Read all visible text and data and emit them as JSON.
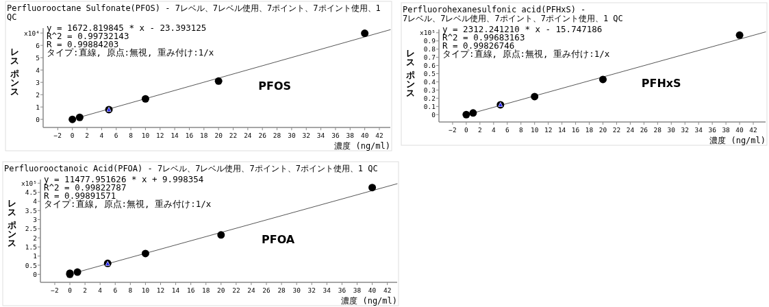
{
  "chart_data": [
    {
      "type": "scatter",
      "title": "Perfluorooctane Sulfonate(PFOS) - 7レベル、7レベル使用、7ポイント、7ポイント使用、1 QC",
      "ylabel": "レスポンス",
      "xlabel": "濃度 (ng/ml)",
      "xlim": [
        -4,
        43.5
      ],
      "ylim": [
        -0.66,
        7.4
      ],
      "xticks": [
        -2,
        0,
        2,
        4,
        6,
        8,
        10,
        12,
        14,
        16,
        18,
        20,
        22,
        24,
        26,
        28,
        30,
        32,
        34,
        36,
        38,
        40,
        42
      ],
      "yticks": [
        0,
        1,
        2,
        3,
        4,
        5,
        6,
        {
          "value": 7,
          "label": "x10⁴"
        }
      ],
      "grid": false,
      "series": [
        {
          "type": "line",
          "color": "#555555",
          "x": [
            1,
            43.5
          ],
          "values": [
            0.17,
            7.27
          ],
          "marker": "none",
          "line_style": "solid"
        },
        {
          "type": "scatter",
          "color": "#000000",
          "x": [
            0,
            1,
            5,
            10,
            20,
            40
          ],
          "values": [
            0,
            0.16,
            0.79,
            1.66,
            3.1,
            6.98
          ],
          "marker": "circle"
        },
        {
          "type": "scatter",
          "color": "#1a1aff",
          "x": [
            5
          ],
          "values": [
            0.79
          ],
          "marker": "triangle"
        }
      ],
      "annotations": [
        "y = 1672.819845 * x  - 23.393125",
        "R^2 = 0.99732143",
        "R = 0.99884203",
        "タイプ:直線, 原点:無視, 重み付け:1/x",
        "PFOS"
      ]
    },
    {
      "type": "scatter",
      "title": "Perfluorohexanesulfonic acid(PFHxS) - 7レベル、7レベル使用、7ポイント、7ポイント使用、1 QC",
      "ylabel": "レスポンス",
      "xlabel": "濃度 (ng/ml)",
      "xlim": [
        -4,
        43.8
      ],
      "ylim": [
        -0.09,
        1.04
      ],
      "xticks": [
        -2,
        0,
        2,
        4,
        6,
        8,
        10,
        12,
        14,
        16,
        18,
        20,
        22,
        24,
        26,
        28,
        30,
        32,
        34,
        36,
        38,
        40,
        42
      ],
      "yticks": [
        0,
        0.1,
        0.2,
        0.3,
        0.4,
        0.5,
        0.6,
        0.7,
        0.8,
        0.9,
        {
          "value": 1,
          "label": "x10⁵"
        }
      ],
      "grid": false,
      "series": [
        {
          "type": "line",
          "color": "#555555",
          "x": [
            1,
            43.8
          ],
          "values": [
            0.02,
            1.01
          ],
          "marker": "none",
          "line_style": "solid"
        },
        {
          "type": "scatter",
          "color": "#000000",
          "x": [
            0,
            1,
            5,
            10,
            20,
            40
          ],
          "values": [
            0,
            0.02,
            0.12,
            0.22,
            0.43,
            0.97
          ],
          "marker": "circle"
        },
        {
          "type": "scatter",
          "color": "#1a1aff",
          "x": [
            5
          ],
          "values": [
            0.12
          ],
          "marker": "triangle"
        }
      ],
      "annotations": [
        "y = 2312.241210 * x  - 15.747186",
        "R^2 = 0.99683163",
        "R = 0.99826746",
        "タイプ:直線, 原点:無視, 重み付け:1/x",
        "PFHxS"
      ]
    },
    {
      "type": "scatter",
      "title": "Perfluorooctanoic Acid(PFOA) - 7レベル、7レベル使用、7ポイント、7ポイント使用、1 QC",
      "ylabel": "レスポンス",
      "xlabel": "濃度 (ng/ml)",
      "xlim": [
        -3.9,
        43.3
      ],
      "ylim": [
        -0.44,
        5.2
      ],
      "xticks": [
        -2,
        0,
        2,
        4,
        6,
        8,
        10,
        12,
        14,
        16,
        18,
        20,
        22,
        24,
        26,
        28,
        30,
        32,
        34,
        36,
        38,
        40,
        42
      ],
      "yticks": [
        0,
        0.5,
        1,
        1.5,
        2,
        2.5,
        3,
        3.5,
        4,
        4.5,
        {
          "value": 5,
          "label": "x10⁵"
        }
      ],
      "grid": false,
      "series": [
        {
          "type": "line",
          "color": "#555555",
          "x": [
            1,
            43.3
          ],
          "values": [
            0.12,
            4.97
          ],
          "marker": "none",
          "line_style": "solid"
        },
        {
          "type": "scatter",
          "color": "#000000",
          "x": [
            0,
            0,
            1,
            5,
            10,
            20,
            40
          ],
          "values": [
            0,
            0.06,
            0.12,
            0.6,
            1.14,
            2.16,
            4.76
          ],
          "marker": "circle"
        },
        {
          "type": "scatter",
          "color": "#1a1aff",
          "x": [
            5
          ],
          "values": [
            0.58
          ],
          "marker": "triangle"
        }
      ],
      "annotations": [
        "y = 11477.951626 * x  + 9.998354",
        "R^2 = 0.99822787",
        "R = 0.99891571",
        "タイプ:直線, 原点:無視, 重み付け:1/x",
        "PFOA"
      ]
    }
  ]
}
